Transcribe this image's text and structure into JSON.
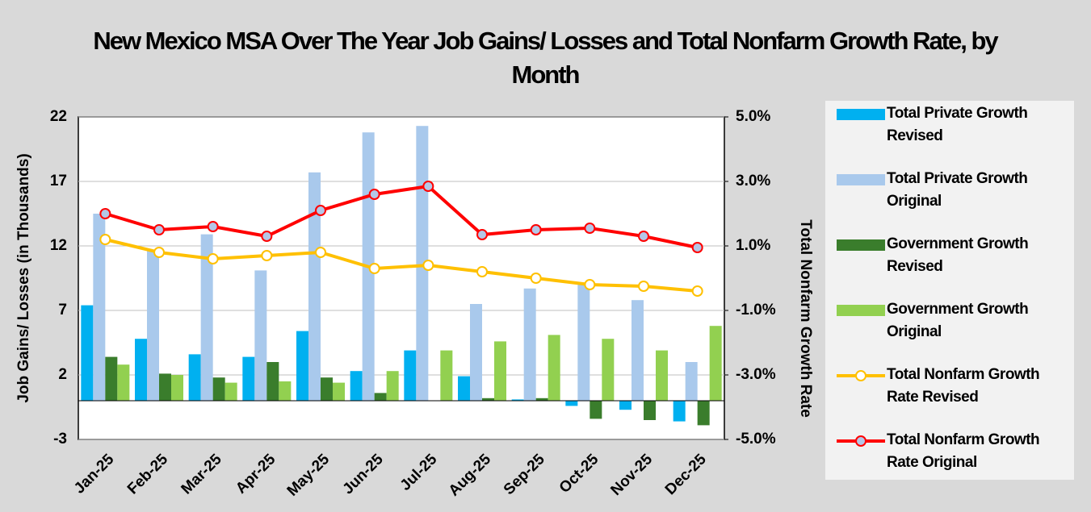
{
  "chart_data": {
    "type": "bar_line",
    "title": "New Mexico MSA Over The Year Job Gains/ Losses and Total Nonfarm Growth Rate, by Month",
    "y_label": "Job Gains/ Losses (in Thousands)",
    "y2_label": "Total Nonfarm Growth Rate",
    "categories": [
      "Jan-25",
      "Feb-25",
      "Mar-25",
      "Apr-25",
      "May-25",
      "Jun-25",
      "Jul-25",
      "Aug-25",
      "Sep-25",
      "Oct-25",
      "Nov-25",
      "Dec-25"
    ],
    "ylim": [
      -3,
      22
    ],
    "yticks": [
      -3,
      2,
      7,
      12,
      17,
      22
    ],
    "y2lim": [
      -5,
      5
    ],
    "y2ticks": [
      {
        "value": -5,
        "label": "-5.0%"
      },
      {
        "value": -3,
        "label": "-3.0%"
      },
      {
        "value": -1,
        "label": "-1.0%"
      },
      {
        "value": 1,
        "label": "1.0%"
      },
      {
        "value": 3,
        "label": "3.0%"
      },
      {
        "value": 5,
        "label": "5.0%"
      }
    ],
    "grid": true,
    "series": [
      {
        "name": "Total Private Growth Revised",
        "kind": "bar",
        "color": "#00b0f0",
        "values": [
          7.4,
          4.8,
          3.6,
          3.4,
          5.4,
          2.3,
          3.9,
          1.9,
          0.1,
          -0.4,
          -0.7,
          -1.6
        ]
      },
      {
        "name": "Total Private Growth Original",
        "kind": "bar",
        "color": "#a9c9ec",
        "values": [
          14.5,
          11.6,
          12.9,
          10.1,
          17.7,
          20.8,
          21.3,
          7.5,
          8.7,
          9.1,
          7.8,
          3.0
        ]
      },
      {
        "name": "Government Growth Revised",
        "kind": "bar",
        "color": "#3a7d2c",
        "values": [
          3.4,
          2.1,
          1.8,
          3.0,
          1.8,
          0.6,
          0,
          0.2,
          0.2,
          -1.4,
          -1.5,
          -1.9
        ]
      },
      {
        "name": "Government Growth Original",
        "kind": "bar",
        "color": "#92d050",
        "values": [
          2.8,
          2.0,
          1.4,
          1.5,
          1.4,
          2.3,
          3.9,
          4.6,
          5.1,
          4.8,
          3.9,
          5.8
        ]
      },
      {
        "name": "Total Nonfarm Growth Rate Revised",
        "kind": "line",
        "axis": "y2",
        "color": "#ffc000",
        "marker_color": "#ffffff",
        "values": [
          1.2,
          0.8,
          0.6,
          0.7,
          0.8,
          0.3,
          0.4,
          0.2,
          0.0,
          -0.2,
          -0.25,
          -0.4
        ]
      },
      {
        "name": "Total Nonfarm Growth Rate Original",
        "kind": "line",
        "axis": "y2",
        "color": "#ff0000",
        "marker_color": "#b4c7e7",
        "values": [
          2.0,
          1.5,
          1.6,
          1.3,
          2.1,
          2.6,
          2.85,
          1.35,
          1.5,
          1.55,
          1.3,
          0.95
        ]
      }
    ]
  }
}
